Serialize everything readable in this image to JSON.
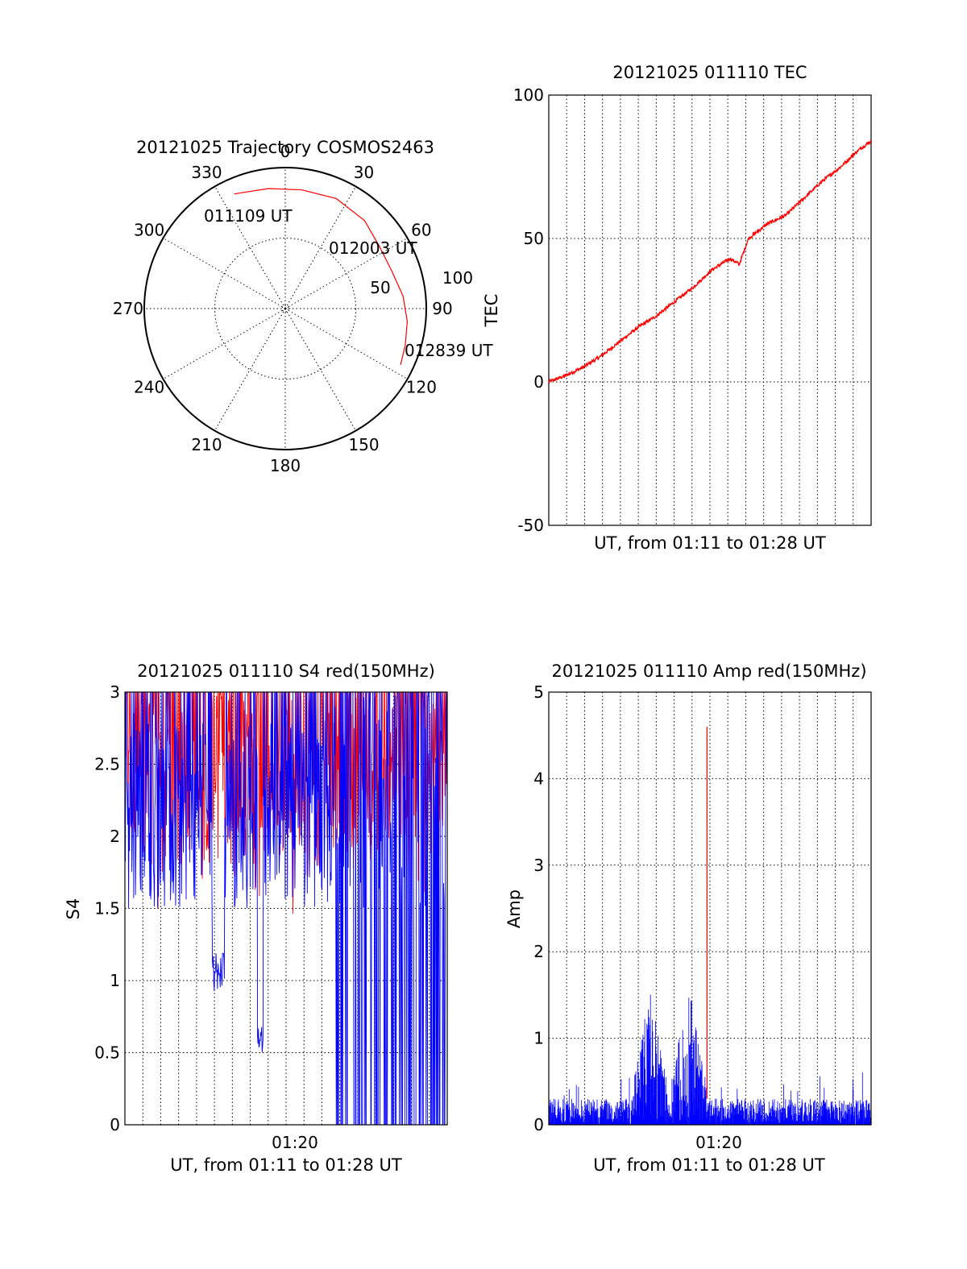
{
  "chart_data": [
    {
      "type": "polar",
      "title": "20121025 Trajectory COSMOS2463",
      "azimuth_labels": [
        "0",
        "30",
        "60",
        "90",
        "120",
        "150",
        "180",
        "210",
        "240",
        "270",
        "300",
        "330"
      ],
      "radial_labels": [
        "50",
        "100"
      ],
      "radial_axis_label": "",
      "radial_range": [
        0,
        100
      ],
      "trajectory": {
        "color": "#ff0000",
        "start_label": "011109 UT",
        "mid_label": "012003 UT",
        "end_label": "012839 UT",
        "points": [
          {
            "az": 336,
            "r": 89
          },
          {
            "az": 352,
            "r": 86
          },
          {
            "az": 8,
            "r": 85
          },
          {
            "az": 25,
            "r": 86
          },
          {
            "az": 42,
            "r": 84
          },
          {
            "az": 57,
            "r": 80
          },
          {
            "az": 70,
            "r": 80
          },
          {
            "az": 84,
            "r": 84
          },
          {
            "az": 96,
            "r": 87
          },
          {
            "az": 107,
            "r": 89
          },
          {
            "az": 116,
            "r": 91
          }
        ]
      }
    },
    {
      "type": "line",
      "title": "20121025 011110 TEC",
      "xlabel": "UT, from 01:11 to 01:28 UT",
      "ylabel": "TEC",
      "xlim": [
        "01:11:10",
        "01:28:39"
      ],
      "ylim": [
        -50,
        100
      ],
      "yticks": [
        "100",
        "50",
        "0",
        "-50"
      ],
      "grid": true,
      "series": [
        {
          "color": "#ff0000",
          "x": [
            "01:11:10",
            "01:12:00",
            "01:13:00",
            "01:14:00",
            "01:15:00",
            "01:16:00",
            "01:17:00",
            "01:18:00",
            "01:19:00",
            "01:20:00",
            "01:21:00",
            "01:21:30",
            "01:22:00",
            "01:23:00",
            "01:24:00",
            "01:25:00",
            "01:26:00",
            "01:27:00",
            "01:28:00",
            "01:28:39"
          ],
          "values": [
            0,
            2,
            5,
            9,
            14,
            19,
            23,
            28,
            33,
            39,
            43,
            41,
            50,
            55,
            58,
            64,
            70,
            75,
            81,
            84
          ]
        }
      ]
    },
    {
      "type": "line",
      "title": "20121025 011110 S4 red(150MHz)",
      "xlabel": "UT, from 01:11 to 01:28 UT",
      "ylabel": "S4",
      "xlim": [
        "01:11:10",
        "01:28:39"
      ],
      "ylim": [
        0,
        3
      ],
      "yticks": [
        "3",
        "2.5",
        "2",
        "1.5",
        "1",
        "0.5",
        "0"
      ],
      "xticks": [
        "01:20"
      ],
      "grid": true,
      "series": [
        {
          "color": "#ff0000",
          "note_range": [
            1.3,
            3.0
          ]
        },
        {
          "color": "#0000ff",
          "note_range": [
            0,
            3.0
          ]
        }
      ]
    },
    {
      "type": "line",
      "title": "20121025 011110 Amp red(150MHz)",
      "xlabel": "UT, from 01:11 to 01:28 UT",
      "ylabel": "Amp",
      "xlim": [
        "01:11:10",
        "01:28:39"
      ],
      "ylim": [
        0,
        5
      ],
      "yticks": [
        "5",
        "4",
        "3",
        "2",
        "1",
        "0"
      ],
      "xticks": [
        "01:20"
      ],
      "grid": true,
      "series": [
        {
          "color": "#ff0000",
          "spike": {
            "x": "01:19:45",
            "value": 4.6
          }
        },
        {
          "color": "#0000ff",
          "peaks": [
            {
              "x": "01:16:40",
              "value": 1.6
            },
            {
              "x": "01:18:45",
              "value": 1.7
            }
          ]
        }
      ]
    }
  ]
}
